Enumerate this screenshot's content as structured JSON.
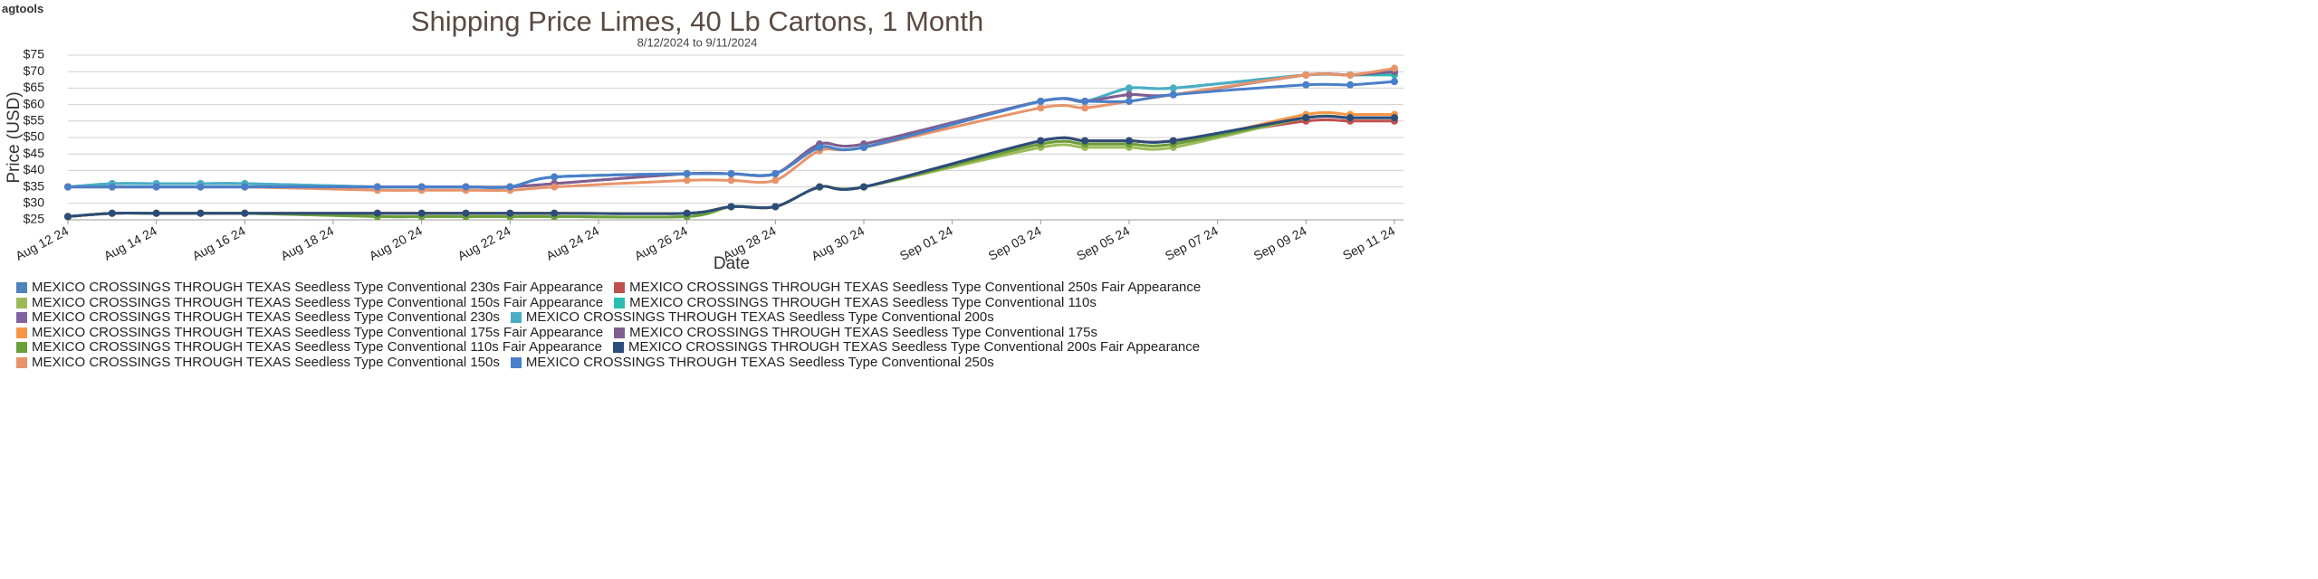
{
  "logo": "agtools",
  "chart_data": {
    "type": "line",
    "title": "Shipping Price  Limes, 40 Lb Cartons, 1 Month",
    "subtitle": "8/12/2024 to 9/11/2024",
    "y_label": "Price (USD)",
    "x_label": "Date",
    "grid": true,
    "legend": "bottom",
    "x": [
      "2024-08-12",
      "2024-08-13",
      "2024-08-14",
      "2024-08-15",
      "2024-08-16",
      "2024-08-19",
      "2024-08-20",
      "2024-08-21",
      "2024-08-22",
      "2024-08-23",
      "2024-08-26",
      "2024-08-27",
      "2024-08-28",
      "2024-08-29",
      "2024-08-30",
      "2024-09-03",
      "2024-09-04",
      "2024-09-05",
      "2024-09-06",
      "2024-09-09",
      "2024-09-10",
      "2024-09-11"
    ],
    "xlim": [
      "2024-08-12",
      "2024-09-11"
    ],
    "xticks": [
      {
        "value": "2024-08-12",
        "label": "Aug 12 24"
      },
      {
        "value": "2024-08-14",
        "label": "Aug 14 24"
      },
      {
        "value": "2024-08-16",
        "label": "Aug 16 24"
      },
      {
        "value": "2024-08-18",
        "label": "Aug 18 24"
      },
      {
        "value": "2024-08-20",
        "label": "Aug 20 24"
      },
      {
        "value": "2024-08-22",
        "label": "Aug 22 24"
      },
      {
        "value": "2024-08-24",
        "label": "Aug 24 24"
      },
      {
        "value": "2024-08-26",
        "label": "Aug 26 24"
      },
      {
        "value": "2024-08-28",
        "label": "Aug 28 24"
      },
      {
        "value": "2024-08-30",
        "label": "Aug 30 24"
      },
      {
        "value": "2024-09-01",
        "label": "Sep 01 24"
      },
      {
        "value": "2024-09-03",
        "label": "Sep 03 24"
      },
      {
        "value": "2024-09-05",
        "label": "Sep 05 24"
      },
      {
        "value": "2024-09-07",
        "label": "Sep 07 24"
      },
      {
        "value": "2024-09-09",
        "label": "Sep 09 24"
      },
      {
        "value": "2024-09-11",
        "label": "Sep 11 24"
      }
    ],
    "ylim": [
      25,
      75
    ],
    "yticks": [
      {
        "value": 25,
        "label": "$25"
      },
      {
        "value": 30,
        "label": "$30"
      },
      {
        "value": 35,
        "label": "$35"
      },
      {
        "value": 40,
        "label": "$40"
      },
      {
        "value": 45,
        "label": "$45"
      },
      {
        "value": 50,
        "label": "$50"
      },
      {
        "value": 55,
        "label": "$55"
      },
      {
        "value": 60,
        "label": "$60"
      },
      {
        "value": 65,
        "label": "$65"
      },
      {
        "value": 70,
        "label": "$70"
      },
      {
        "value": 75,
        "label": "$75"
      }
    ],
    "series": [
      {
        "name": "MEXICO CROSSINGS THROUGH TEXAS Seedless Type Conventional 230s Fair Appearance",
        "color": "#4f81bd",
        "values": [
          26,
          27,
          27,
          27,
          27,
          27,
          27,
          27,
          27,
          27,
          27,
          29,
          29,
          35,
          35,
          49,
          49,
          49,
          49,
          56,
          56,
          56
        ]
      },
      {
        "name": "MEXICO CROSSINGS THROUGH TEXAS Seedless Type Conventional 250s Fair Appearance",
        "color": "#c0504d",
        "values": [
          26,
          27,
          27,
          27,
          27,
          27,
          27,
          27,
          27,
          27,
          27,
          29,
          29,
          35,
          35,
          49,
          49,
          49,
          49,
          55,
          55,
          55
        ]
      },
      {
        "name": "MEXICO CROSSINGS THROUGH TEXAS Seedless Type Conventional 150s Fair Appearance",
        "color": "#9bbb59",
        "values": [
          26,
          27,
          27,
          27,
          27,
          26,
          26,
          26,
          26,
          26,
          26,
          29,
          29,
          35,
          35,
          47,
          47,
          47,
          47,
          56,
          56,
          56
        ]
      },
      {
        "name": "MEXICO CROSSINGS THROUGH TEXAS Seedless Type Conventional 110s",
        "color": "#2bbcb0",
        "values": [
          35,
          36,
          36,
          36,
          36,
          35,
          35,
          35,
          35,
          38,
          39,
          39,
          39,
          47,
          47,
          61,
          61,
          65,
          65,
          69,
          69,
          69
        ]
      },
      {
        "name": "MEXICO CROSSINGS THROUGH TEXAS Seedless Type Conventional 230s",
        "color": "#8064a2",
        "values": [
          35,
          35,
          35,
          35,
          35,
          35,
          35,
          35,
          35,
          36,
          39,
          39,
          39,
          48,
          48,
          61,
          61,
          63,
          63,
          69,
          69,
          70
        ]
      },
      {
        "name": "MEXICO CROSSINGS THROUGH TEXAS Seedless Type Conventional 200s",
        "color": "#4bacc6",
        "values": [
          35,
          36,
          36,
          36,
          36,
          35,
          35,
          35,
          35,
          38,
          39,
          39,
          39,
          47,
          47,
          61,
          61,
          65,
          65,
          69,
          69,
          70
        ]
      },
      {
        "name": "MEXICO CROSSINGS THROUGH TEXAS Seedless Type Conventional 175s Fair Appearance",
        "color": "#f79646",
        "values": [
          26,
          27,
          27,
          27,
          27,
          27,
          27,
          27,
          27,
          27,
          27,
          29,
          29,
          35,
          35,
          48,
          48,
          48,
          48,
          57,
          57,
          57
        ]
      },
      {
        "name": "MEXICO CROSSINGS THROUGH TEXAS Seedless Type Conventional 175s",
        "color": "#7f5f8f",
        "values": [
          35,
          35,
          35,
          35,
          35,
          35,
          35,
          35,
          35,
          36,
          39,
          39,
          39,
          48,
          48,
          61,
          61,
          63,
          63,
          69,
          69,
          70
        ]
      },
      {
        "name": "MEXICO CROSSINGS THROUGH TEXAS Seedless Type Conventional 110s Fair Appearance",
        "color": "#6a9f3a",
        "values": [
          26,
          27,
          27,
          27,
          27,
          26,
          26,
          26,
          26,
          26,
          26,
          29,
          29,
          35,
          35,
          48,
          48,
          48,
          48,
          56,
          56,
          56
        ]
      },
      {
        "name": "MEXICO CROSSINGS THROUGH TEXAS Seedless Type Conventional 200s Fair Appearance",
        "color": "#2c4d7a",
        "values": [
          26,
          27,
          27,
          27,
          27,
          27,
          27,
          27,
          27,
          27,
          27,
          29,
          29,
          35,
          35,
          49,
          49,
          49,
          49,
          56,
          56,
          56
        ]
      },
      {
        "name": "MEXICO CROSSINGS THROUGH TEXAS Seedless Type Conventional 150s",
        "color": "#e8946a",
        "values": [
          35,
          35,
          35,
          35,
          35,
          34,
          34,
          34,
          34,
          35,
          37,
          37,
          37,
          46,
          47,
          59,
          59,
          61,
          63,
          69,
          69,
          71
        ]
      },
      {
        "name": "MEXICO CROSSINGS THROUGH TEXAS Seedless Type Conventional 250s",
        "color": "#4a7fc9",
        "values": [
          35,
          35,
          35,
          35,
          35,
          35,
          35,
          35,
          35,
          38,
          39,
          39,
          39,
          47,
          47,
          61,
          61,
          61,
          63,
          66,
          66,
          67
        ]
      }
    ]
  }
}
